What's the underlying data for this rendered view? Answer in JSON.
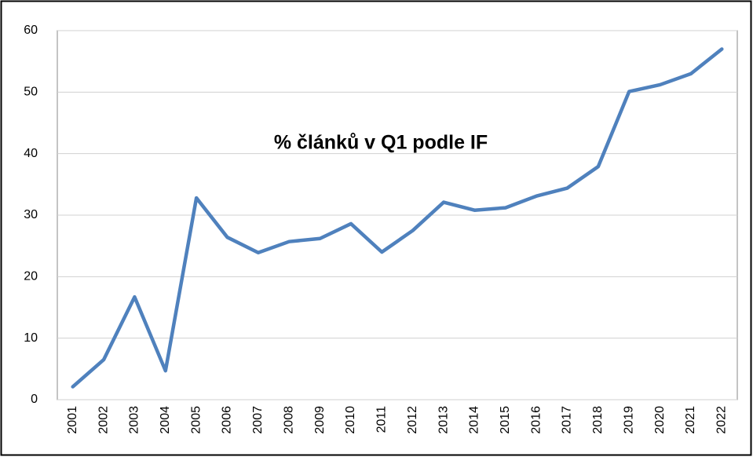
{
  "chart_data": {
    "type": "line",
    "title": "% článků v Q1 podle IF",
    "categories": [
      "2001",
      "2002",
      "2003",
      "2004",
      "2005",
      "2006",
      "2007",
      "2008",
      "2009",
      "2010",
      "2011",
      "2012",
      "2013",
      "2014",
      "2015",
      "2016",
      "2017",
      "2018",
      "2019",
      "2020",
      "2021",
      "2022"
    ],
    "series": [
      {
        "color": "#4f81bd",
        "values": [
          2.1,
          6.5,
          16.7,
          4.7,
          32.8,
          26.4,
          23.9,
          25.7,
          26.2,
          28.6,
          24.0,
          27.5,
          32.1,
          30.8,
          31.2,
          33.1,
          34.4,
          37.9,
          50.1,
          51.2,
          53.0,
          57.0
        ]
      }
    ],
    "ylim": [
      0,
      60
    ],
    "yticks": [
      0,
      10,
      20,
      30,
      40,
      50,
      60
    ],
    "grid": true
  }
}
